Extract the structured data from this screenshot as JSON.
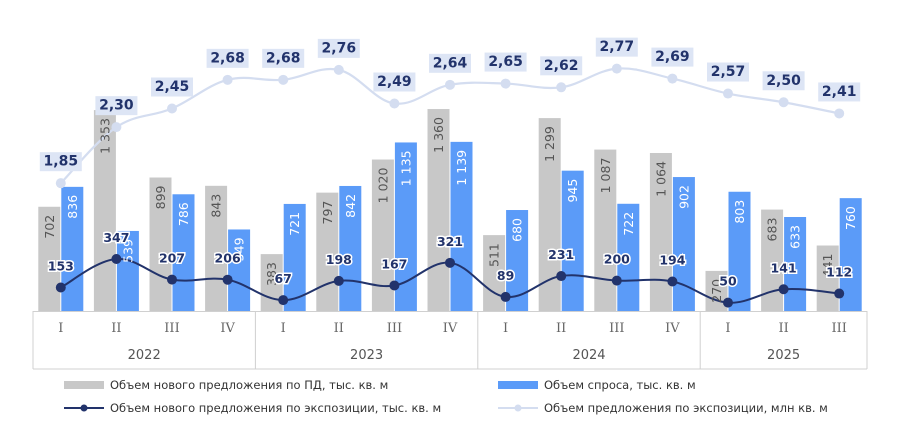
{
  "chart_data": {
    "type": "bar",
    "groups": [
      {
        "year": "2022",
        "quarters": [
          "I",
          "II",
          "III",
          "IV"
        ]
      },
      {
        "year": "2023",
        "quarters": [
          "I",
          "II",
          "III",
          "IV"
        ]
      },
      {
        "year": "2024",
        "quarters": [
          "I",
          "II",
          "III",
          "IV"
        ]
      },
      {
        "year": "2025",
        "quarters": [
          "I",
          "II",
          "III"
        ]
      }
    ],
    "series": [
      {
        "name": "Объем нового предложения по ПД, тыс. кв. м",
        "kind": "bar",
        "color": "#c8c8c8",
        "values": [
          702,
          1353,
          899,
          843,
          383,
          797,
          1020,
          1360,
          511,
          1299,
          1087,
          1064,
          270,
          683,
          441
        ],
        "labels": [
          "702",
          "1 353",
          "899",
          "843",
          "383",
          "797",
          "1 020",
          "1 360",
          "511",
          "1 299",
          "1 087",
          "1 064",
          "270",
          "683",
          "441"
        ]
      },
      {
        "name": "Объем спроса, тыс. кв. м",
        "kind": "bar",
        "color": "#5b9bf8",
        "values": [
          836,
          539,
          786,
          549,
          721,
          842,
          1135,
          1139,
          680,
          945,
          722,
          902,
          803,
          633,
          760
        ],
        "labels": [
          "836",
          "539",
          "786",
          "549",
          "721",
          "842",
          "1 135",
          "1 139",
          "680",
          "945",
          "722",
          "902",
          "803",
          "633",
          "760"
        ]
      },
      {
        "name": "Объем нового предложения по экспозиции, тыс. кв. м",
        "kind": "line",
        "color": "#22336b",
        "values": [
          153,
          347,
          207,
          206,
          67,
          198,
          167,
          321,
          89,
          231,
          200,
          194,
          50,
          141,
          112
        ],
        "labels": [
          "153",
          "347",
          "207",
          "206",
          "67",
          "198",
          "167",
          "321",
          "89",
          "231",
          "200",
          "194",
          "50",
          "141",
          "112"
        ]
      },
      {
        "name": "Объем предложения по экспозиции, млн кв. м",
        "kind": "line",
        "color": "#d4ddf0",
        "label_bg": "#dde5f5",
        "values": [
          1.85,
          2.3,
          2.45,
          2.68,
          2.68,
          2.76,
          2.49,
          2.64,
          2.65,
          2.62,
          2.77,
          2.69,
          2.57,
          2.5,
          2.41
        ],
        "labels": [
          "1,85",
          "2,30",
          "2,45",
          "2,68",
          "2,68",
          "2,76",
          "2,49",
          "2,64",
          "2,65",
          "2,62",
          "2,77",
          "2,69",
          "2,57",
          "2,50",
          "2,41"
        ]
      }
    ],
    "legend_position": "bottom",
    "grid": false
  }
}
